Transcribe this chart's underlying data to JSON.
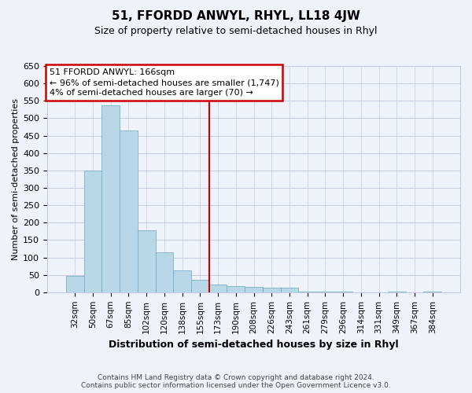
{
  "title": "51, FFORDD ANWYL, RHYL, LL18 4JW",
  "subtitle": "Size of property relative to semi-detached houses in Rhyl",
  "xlabel": "Distribution of semi-detached houses by size in Rhyl",
  "ylabel": "Number of semi-detached properties",
  "bar_labels": [
    "32sqm",
    "50sqm",
    "67sqm",
    "85sqm",
    "102sqm",
    "120sqm",
    "138sqm",
    "155sqm",
    "173sqm",
    "190sqm",
    "208sqm",
    "226sqm",
    "243sqm",
    "261sqm",
    "279sqm",
    "296sqm",
    "314sqm",
    "331sqm",
    "349sqm",
    "367sqm",
    "384sqm"
  ],
  "bar_values": [
    47,
    349,
    536,
    465,
    178,
    115,
    62,
    35,
    22,
    18,
    15,
    13,
    13,
    2,
    2,
    2,
    0,
    0,
    2,
    0,
    2
  ],
  "bar_color": "#b8d8e8",
  "bar_edge_color": "#7aafc8",
  "vline_index": 8,
  "vline_color": "#cc0000",
  "annotation_title": "51 FFORDD ANWYL: 166sqm",
  "annotation_line1": "← 96% of semi-detached houses are smaller (1,747)",
  "annotation_line2": "4% of semi-detached houses are larger (70) →",
  "annotation_box_facecolor": "#ffffff",
  "annotation_box_edgecolor": "#cc0000",
  "ylim": [
    0,
    650
  ],
  "yticks": [
    0,
    50,
    100,
    150,
    200,
    250,
    300,
    350,
    400,
    450,
    500,
    550,
    600,
    650
  ],
  "footer_line1": "Contains HM Land Registry data © Crown copyright and database right 2024.",
  "footer_line2": "Contains public sector information licensed under the Open Government Licence v3.0.",
  "bg_color": "#eef2fb",
  "grid_color": "#c5cce0",
  "title_fontsize": 11,
  "subtitle_fontsize": 9,
  "xlabel_fontsize": 9,
  "ylabel_fontsize": 8,
  "tick_fontsize": 7.5,
  "ytick_fontsize": 8,
  "footer_fontsize": 6.5,
  "ann_fontsize": 8
}
